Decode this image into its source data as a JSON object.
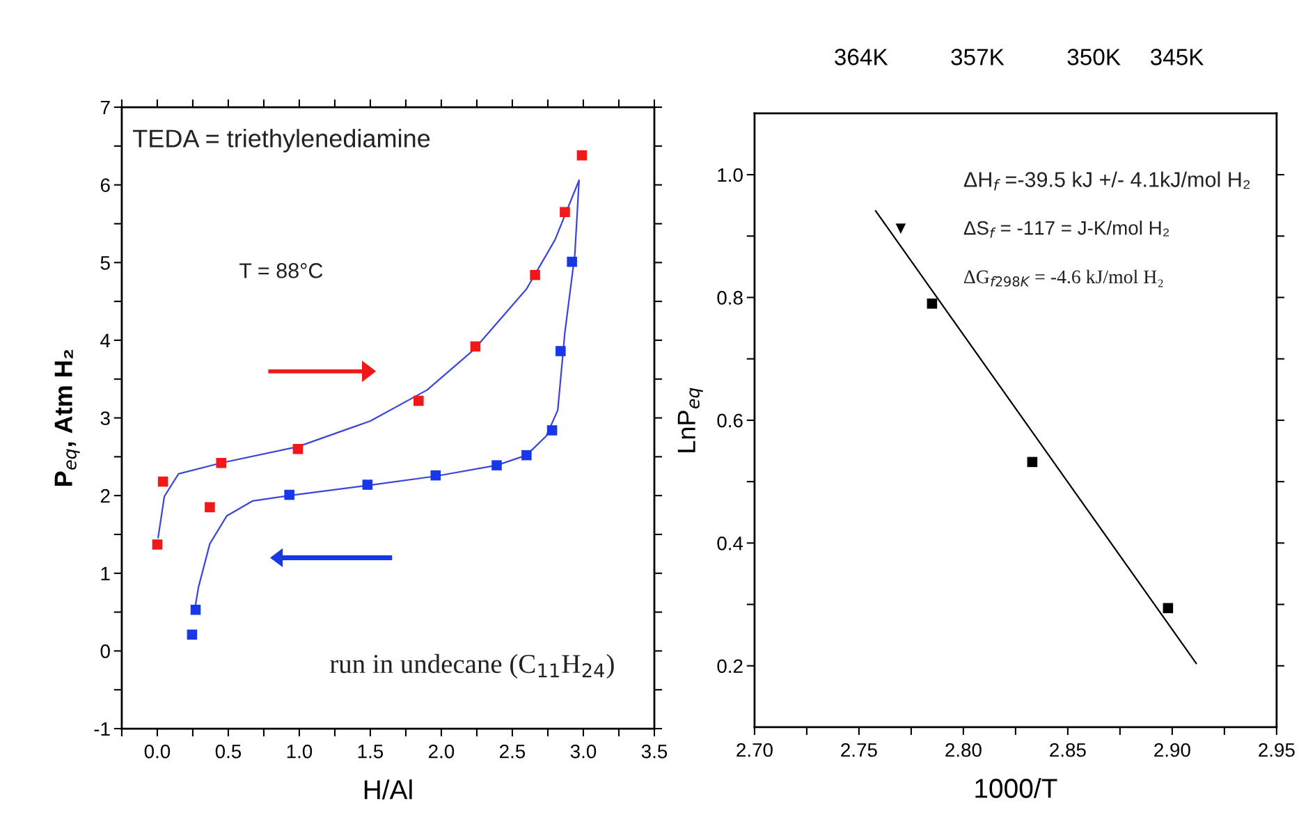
{
  "chart_data": [
    {
      "type": "scatter",
      "xlabel": "H/Al",
      "ylabel": "P$_{eq}$, Atm H₂",
      "xlim": [
        -0.25,
        3.5
      ],
      "ylim": [
        -1,
        7
      ],
      "xticks": [
        {
          "value": -0.25,
          "label": null
        },
        {
          "value": 0.0,
          "label": "0.0"
        },
        {
          "value": 0.25,
          "label": null
        },
        {
          "value": 0.5,
          "label": "0.5"
        },
        {
          "value": 0.75,
          "label": null
        },
        {
          "value": 1.0,
          "label": "1.0"
        },
        {
          "value": 1.25,
          "label": null
        },
        {
          "value": 1.5,
          "label": "1.5"
        },
        {
          "value": 1.75,
          "label": null
        },
        {
          "value": 2.0,
          "label": "2.0"
        },
        {
          "value": 2.25,
          "label": null
        },
        {
          "value": 2.5,
          "label": "2.5"
        },
        {
          "value": 2.75,
          "label": null
        },
        {
          "value": 3.0,
          "label": "3.0"
        },
        {
          "value": 3.25,
          "label": null
        },
        {
          "value": 3.5,
          "label": "3.5"
        }
      ],
      "yticks": [
        -1,
        {
          "value": -0.5,
          "label": null
        },
        0,
        {
          "value": 0.5,
          "label": null
        },
        1,
        {
          "value": 1.5,
          "label": null
        },
        2,
        {
          "value": 2.5,
          "label": null
        },
        3,
        {
          "value": 3.5,
          "label": null
        },
        4,
        {
          "value": 4.5,
          "label": null
        },
        5,
        {
          "value": 5.5,
          "label": null
        },
        6,
        {
          "value": 6.5,
          "label": null
        },
        7
      ],
      "grid": false,
      "legend": false,
      "series": [
        {
          "type": "line",
          "color": "#3a46d8",
          "marker": "none",
          "x": [
            0.006,
            0.05,
            0.15,
            0.45,
            0.99,
            1.5,
            1.9,
            2.23,
            2.6,
            2.8,
            2.97,
            2.94,
            2.87,
            2.82,
            2.74,
            2.6,
            2.39,
            1.96,
            1.48,
            0.93,
            0.67,
            0.49,
            0.37,
            0.29,
            0.26
          ],
          "values": [
            1.46,
            1.99,
            2.28,
            2.42,
            2.63,
            2.96,
            3.36,
            3.88,
            4.66,
            5.29,
            6.06,
            5.1,
            4.1,
            3.1,
            2.77,
            2.52,
            2.39,
            2.25,
            2.13,
            2.0,
            1.93,
            1.74,
            1.38,
            0.82,
            0.49
          ]
        },
        {
          "color": "#f01818",
          "marker": "square",
          "x": [
            0.0,
            0.04,
            0.37,
            0.45,
            0.99,
            1.84,
            2.24,
            2.66,
            2.87,
            2.99
          ],
          "values": [
            1.37,
            2.18,
            1.85,
            2.42,
            2.6,
            3.22,
            3.92,
            4.84,
            5.65,
            6.38
          ]
        },
        {
          "color": "#1838e8",
          "marker": "square",
          "x": [
            0.245,
            0.27,
            0.93,
            1.48,
            1.96,
            2.39,
            2.6,
            2.78,
            2.84,
            2.92
          ],
          "values": [
            0.21,
            0.53,
            2.01,
            2.14,
            2.26,
            2.39,
            2.52,
            2.84,
            3.86,
            5.01
          ]
        }
      ],
      "annotations": [
        "TEDA = triethylenediamine",
        "T = 88°C",
        "run in undecane (C$_{11}$H$_{24}$)"
      ]
    },
    {
      "type": "scatter",
      "xlabel": "1000/T",
      "ylabel": "LnP$_{eq}$",
      "xlim": [
        2.7,
        2.95
      ],
      "ylim": [
        0.1,
        1.1
      ],
      "xticks": [
        {
          "value": 2.7,
          "label": "2.70"
        },
        {
          "value": 2.725,
          "label": null
        },
        {
          "value": 2.75,
          "label": "2.75"
        },
        {
          "value": 2.775,
          "label": null
        },
        {
          "value": 2.8,
          "label": "2.80"
        },
        {
          "value": 2.825,
          "label": null
        },
        {
          "value": 2.85,
          "label": "2.85"
        },
        {
          "value": 2.875,
          "label": null
        },
        {
          "value": 2.9,
          "label": "2.90"
        },
        {
          "value": 2.925,
          "label": null
        },
        {
          "value": 2.95,
          "label": "2.95"
        }
      ],
      "yticks": [
        {
          "value": 0.2,
          "label": "0.2"
        },
        {
          "value": 0.3,
          "label": null
        },
        {
          "value": 0.4,
          "label": "0.4"
        },
        {
          "value": 0.5,
          "label": null
        },
        {
          "value": 0.6,
          "label": "0.6"
        },
        {
          "value": 0.7,
          "label": null
        },
        {
          "value": 0.8,
          "label": "0.8"
        },
        {
          "value": 0.9,
          "label": null
        },
        {
          "value": 1.0,
          "label": "1.0"
        }
      ],
      "x2lim": [
        370.4,
        339.0
      ],
      "x2ticks": [
        {
          "value": 364,
          "label": "364K"
        },
        {
          "value": 357,
          "label": "357K"
        },
        {
          "value": 350,
          "label": "350K"
        },
        {
          "value": 345,
          "label": "345K"
        }
      ],
      "grid": false,
      "legend": false,
      "series": [
        {
          "color": "#000000",
          "marker": "triangle",
          "x": [
            2.77
          ],
          "values": [
            0.912
          ]
        },
        {
          "color": "#000000",
          "marker": "square",
          "x": [
            2.785,
            2.833,
            2.898
          ],
          "values": [
            0.79,
            0.532,
            0.294
          ]
        },
        {
          "type": "line",
          "color": "#000000",
          "marker": "none",
          "x": [
            2.758,
            2.9115
          ],
          "values": [
            0.941,
            0.204
          ]
        }
      ],
      "annotations": [
        "ΔH$_{f}$ =-39.5 kJ +/- 4.1kJ/mol H₂",
        "ΔS$_{f}$ = -117 = J-K/mol H₂",
        "ΔG$_{f298K}$ = -4.6 kJ/mol H₂"
      ]
    }
  ]
}
